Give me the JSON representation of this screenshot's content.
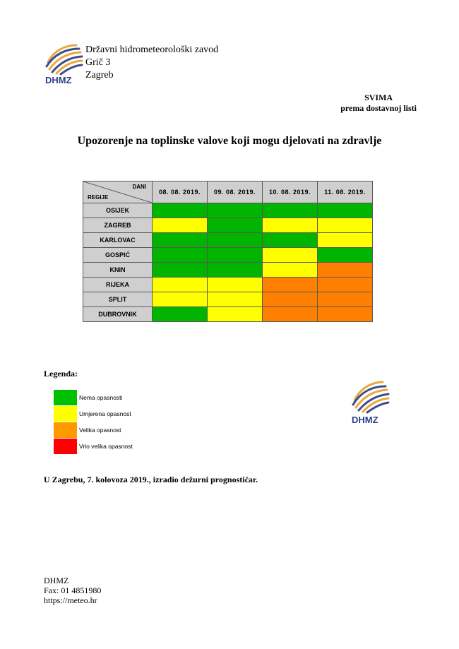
{
  "header": {
    "logo_text": "DHMZ",
    "org_lines": [
      "Državni hidrometeorološki zavod",
      "Grič 3",
      "Zagreb"
    ]
  },
  "recipient": {
    "line1": "SVIMA",
    "line2": "prema dostavnoj listi"
  },
  "title": "Upozorenje na toplinske valove koji mogu djelovati na zdravlje",
  "table": {
    "corner_top": "DANI",
    "corner_bottom": "REGIJE",
    "days": [
      "08. 08. 2019.",
      "09. 08. 2019.",
      "10. 08. 2019.",
      "11. 08. 2019."
    ],
    "rows": [
      {
        "region": "OSIJEK",
        "levels": [
          0,
          0,
          0,
          0
        ]
      },
      {
        "region": "ZAGREB",
        "levels": [
          1,
          0,
          1,
          1
        ]
      },
      {
        "region": "KARLOVAC",
        "levels": [
          0,
          0,
          0,
          1
        ]
      },
      {
        "region": "GOSPIĆ",
        "levels": [
          0,
          0,
          1,
          0
        ]
      },
      {
        "region": "KNIN",
        "levels": [
          0,
          0,
          1,
          2
        ]
      },
      {
        "region": "RIJEKA",
        "levels": [
          1,
          1,
          2,
          2
        ]
      },
      {
        "region": "SPLIT",
        "levels": [
          1,
          1,
          2,
          2
        ]
      },
      {
        "region": "DUBROVNIK",
        "levels": [
          0,
          1,
          2,
          2
        ]
      }
    ]
  },
  "level_colors": [
    "#00b400",
    "#ffff00",
    "#ff7f00",
    "#ff0000"
  ],
  "legend": {
    "title": "Legenda:",
    "items": [
      {
        "label": "Nema opasnosti",
        "color": "#00c000"
      },
      {
        "label": "Umjerena opasnost",
        "color": "#ffff00"
      },
      {
        "label": "Velika opasnost",
        "color": "#ff9900"
      },
      {
        "label": "Vrlo velika opasnost",
        "color": "#ff0000"
      }
    ]
  },
  "issued": "U Zagrebu, 7. kolovoza 2019., izradio dežurni prognostičar.",
  "footer": {
    "lines": [
      "DHMZ",
      "Fax: 01 4851980",
      "https://meteo.hr"
    ]
  }
}
